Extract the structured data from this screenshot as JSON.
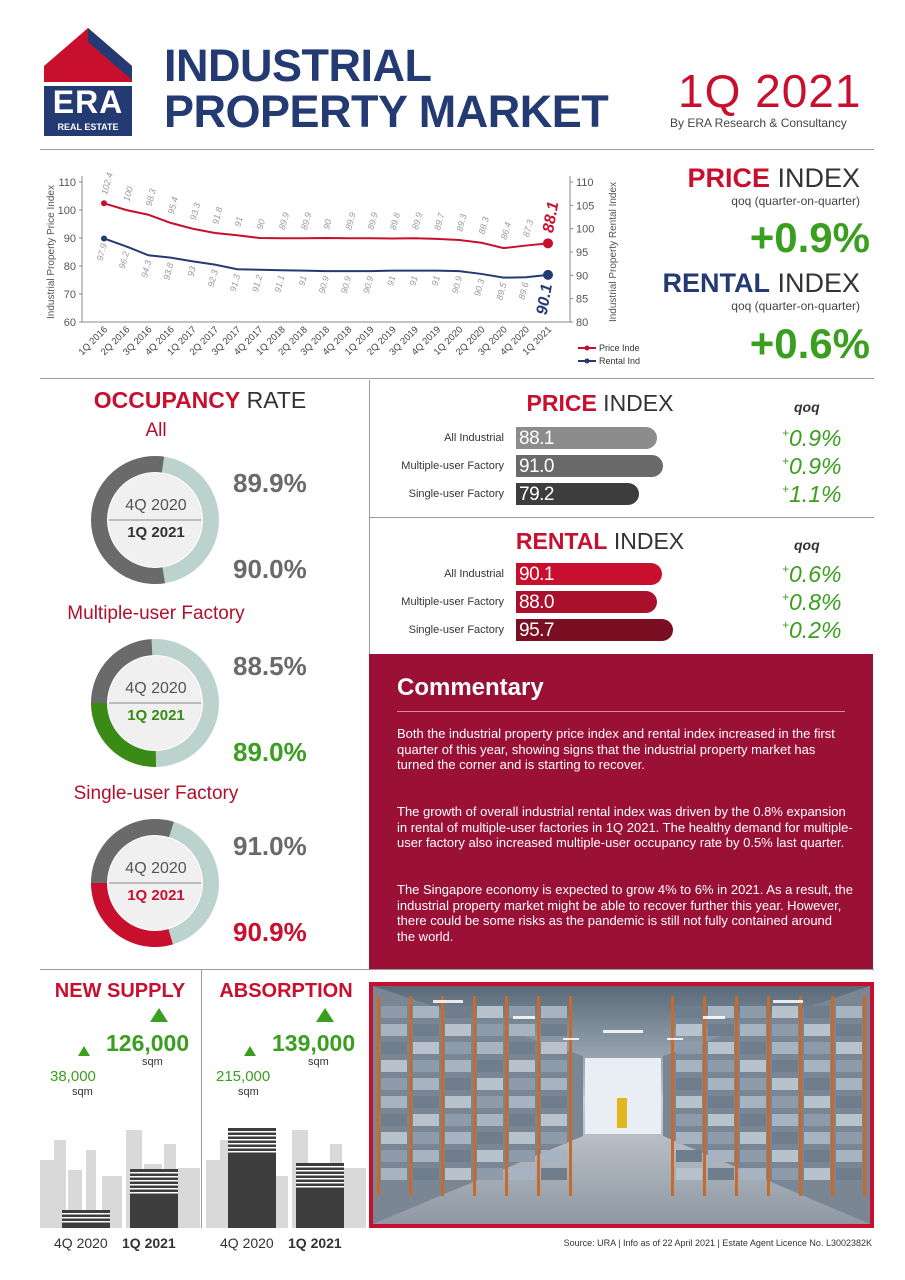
{
  "header": {
    "brand": {
      "logo_text": "ERA",
      "logo_sub": "REAL ESTATE"
    },
    "title_line1": "INDUSTRIAL",
    "title_line2": "PROPERTY MARKET",
    "quarter": "1Q 2021",
    "byline": "By ERA Research & Consultancy"
  },
  "kpis": {
    "price": {
      "head_bold": "PRICE",
      "head_rest": " INDEX",
      "sub": "qoq (quarter-on-quarter)",
      "value": "+0.9%"
    },
    "rental": {
      "head_bold": "RENTAL",
      "head_rest": " INDEX",
      "sub": "qoq (quarter-on-quarter)",
      "value": "+0.6%"
    }
  },
  "chart_data": [
    {
      "type": "line",
      "ylabel": "Industrial Property Price Index",
      "y2label": "Industrial Property Rental Index",
      "ylim": [
        60,
        110
      ],
      "y2lim": [
        80,
        110
      ],
      "yticks": [
        60,
        70,
        80,
        90,
        100,
        110
      ],
      "y2ticks": [
        80,
        85,
        90,
        95,
        100,
        105,
        110
      ],
      "x": [
        "1Q 2016",
        "2Q 2016",
        "3Q 2016",
        "4Q 2016",
        "1Q 2017",
        "2Q 2017",
        "3Q 2017",
        "4Q 2017",
        "1Q 2018",
        "2Q 2018",
        "3Q 2018",
        "4Q 2018",
        "1Q 2019",
        "2Q 2019",
        "3Q 2019",
        "4Q 2019",
        "1Q 2020",
        "2Q 2020",
        "3Q 2020",
        "4Q 2020",
        "1Q 2021"
      ],
      "series": [
        {
          "name": "Price Index",
          "axis": "left",
          "color": "#c8102e",
          "values": [
            102.4,
            100,
            98.3,
            95.4,
            93.3,
            91.8,
            91,
            90,
            89.9,
            89.9,
            90,
            89.9,
            89.9,
            89.8,
            89.9,
            89.7,
            89.3,
            88.3,
            86.4,
            87.3,
            88.1
          ],
          "end_label": "88.1"
        },
        {
          "name": "Rental Index",
          "axis": "right",
          "color": "#243a73",
          "values": [
            97.9,
            96.2,
            94.3,
            93.8,
            93,
            92.3,
            91.3,
            91.2,
            91.1,
            91,
            90.9,
            90.9,
            90.9,
            91,
            91,
            91,
            90.9,
            90.3,
            89.5,
            89.6,
            90.1
          ],
          "end_label": "90.1"
        }
      ],
      "legend": "bottom-right"
    },
    {
      "type": "bar",
      "title_bold": "PRICE",
      "title_rest": " INDEX",
      "qoq_label": "qoq",
      "categories": [
        "All Industrial",
        "Multiple-user Factory",
        "Single-user Factory"
      ],
      "values": [
        88.1,
        91.0,
        79.2
      ],
      "value_labels": [
        "88.1",
        "91.0",
        "79.2"
      ],
      "qoq": [
        "0.9%",
        "0.9%",
        "1.1%"
      ],
      "colors": [
        "#8c8c8c",
        "#6a6a6a",
        "#3d3d3d"
      ]
    },
    {
      "type": "bar",
      "title_bold": "RENTAL",
      "title_rest": " INDEX",
      "qoq_label": "qoq",
      "categories": [
        "All Industrial",
        "Multiple-user Factory",
        "Single-user Factory"
      ],
      "values": [
        90.1,
        88.0,
        95.7
      ],
      "value_labels": [
        "90.1",
        "88.0",
        "95.7"
      ],
      "qoq": [
        "0.6%",
        "0.8%",
        "0.2%"
      ],
      "colors": [
        "#c8102e",
        "#a8102c",
        "#7a0f24"
      ]
    },
    {
      "type": "pie",
      "title_bold": "OCCUPANCY",
      "title_rest": " RATE",
      "groups": [
        {
          "name": "All",
          "prev_label": "4Q 2020",
          "curr_label": "1Q 2021",
          "prev": 89.9,
          "curr": 90.0,
          "prev_text": "89.9%",
          "curr_text": "90.0%",
          "color": "#6a6a6a",
          "label_color": "#333333"
        },
        {
          "name": "Multiple-user Factory",
          "prev_label": "4Q 2020",
          "curr_label": "1Q 2021",
          "prev": 88.5,
          "curr": 89.0,
          "prev_text": "88.5%",
          "curr_text": "89.0%",
          "color": "#3a8a16",
          "label_color": "#3a8a16"
        },
        {
          "name": "Single-user Factory",
          "prev_label": "4Q 2020",
          "curr_label": "1Q 2021",
          "prev": 91.0,
          "curr": 90.9,
          "prev_text": "91.0%",
          "curr_text": "90.9%",
          "color": "#c8102e",
          "label_color": "#c8102e"
        }
      ]
    },
    {
      "type": "bar",
      "title": "NEW SUPPLY",
      "categories": [
        "4Q 2020",
        "1Q 2021"
      ],
      "values": [
        38000,
        126000
      ],
      "value_labels": [
        "38,000",
        "126,000"
      ],
      "unit": "sqm"
    },
    {
      "type": "bar",
      "title": "ABSORPTION",
      "categories": [
        "4Q 2020",
        "1Q 2021"
      ],
      "values": [
        215000,
        139000
      ],
      "value_labels": [
        "215,000",
        "139,000"
      ],
      "unit": "sqm"
    }
  ],
  "commentary": {
    "title": "Commentary",
    "p1": "Both the industrial property price index and rental index increased in the first quarter of this year, showing signs that the industrial property market has turned the corner and is starting to recover.",
    "p2": "The growth of overall industrial rental index was driven by the 0.8% expansion in rental of multiple-user factories in 1Q 2021. The healthy demand for multiple-user factory also increased multiple-user occupancy rate by 0.5% last quarter.",
    "p3": "The Singapore economy is expected to grow 4% to 6% in 2021. As a result, the industrial property market might be able to recover further this year. However, there could be some risks as the pandemic is still not fully contained around the world."
  },
  "footer": {
    "source": "Source: URA | Info as of 22 April 2021 | Estate Agent Licence No. L3002382K"
  },
  "colors": {
    "navy": "#243a73",
    "crimson": "#c8102e",
    "green": "#3a9e1f",
    "commentary_bg": "#9b1035"
  }
}
